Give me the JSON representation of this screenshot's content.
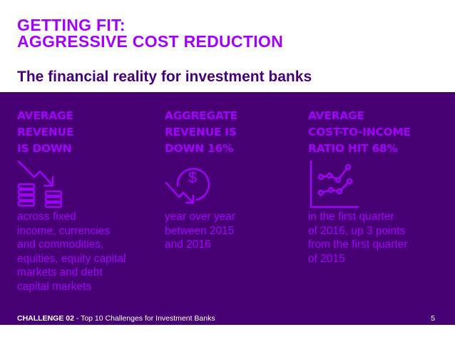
{
  "header": {
    "title_line1": "GETTING FIT:",
    "title_line2": "AGGRESSIVE COST REDUCTION",
    "subtitle": "The financial reality for investment banks"
  },
  "colors": {
    "accent": "#a100ff",
    "panel": "#460073",
    "text_light": "#ffffff"
  },
  "columns": [
    {
      "heading": [
        "AVERAGE",
        "REVENUE",
        "IS DOWN"
      ],
      "icon": "declining-coins-icon",
      "body": [
        "across fixed",
        "income, currencies",
        "and commodities,",
        "equities, equity capital",
        "markets and debt",
        "capital markets"
      ]
    },
    {
      "heading": [
        "AGGREGATE",
        "REVENUE IS",
        "DOWN 16%"
      ],
      "icon": "dollar-down-arrow-icon",
      "body": [
        "year over year",
        "between 2015",
        "and 2016"
      ]
    },
    {
      "heading": [
        "AVERAGE",
        "COST-TO-INCOME",
        "RATIO HIT 68%"
      ],
      "icon": "rising-line-chart-icon",
      "body": [
        "in the first quarter",
        "of 2016, up 3 points",
        "from the first quarter",
        "of 2015"
      ]
    }
  ],
  "footer": {
    "challenge_label": "CHALLENGE 02",
    "challenge_text": " - Top 10 Challenges for Investment Banks",
    "page_number": "5"
  }
}
